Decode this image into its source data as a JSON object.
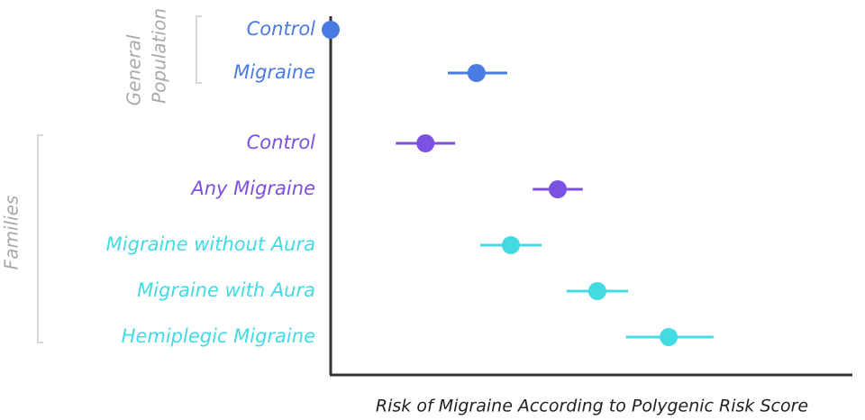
{
  "chart_data": {
    "type": "dot",
    "xlabel": "Risk of Migraine According to Polygenic Risk Score",
    "xlim": [
      0,
      100
    ],
    "groups": [
      {
        "lines": [
          "General",
          "Population"
        ],
        "categories": [
          "Control",
          "Migraine"
        ],
        "colors": [
          "#4a7be3",
          "#4a7be3"
        ],
        "values": [
          0,
          28.0
        ],
        "lower": [
          null,
          22.5
        ],
        "upper": [
          null,
          33.9
        ]
      },
      {
        "lines": [
          "Families"
        ],
        "categories": [
          "Control",
          "Any Migraine",
          "Migraine without Aura",
          "Migraine with Aura",
          "Hemiplegic Migraine"
        ],
        "colors": [
          "#7b50e3",
          "#7b50e3",
          "#43dbe3",
          "#43dbe3",
          "#43dbe3"
        ],
        "values": [
          18.2,
          43.6,
          34.6,
          51.2,
          64.9
        ],
        "lower": [
          12.5,
          38.8,
          28.7,
          45.3,
          56.7
        ],
        "upper": [
          23.9,
          48.4,
          40.5,
          57.1,
          73.5
        ]
      }
    ]
  }
}
